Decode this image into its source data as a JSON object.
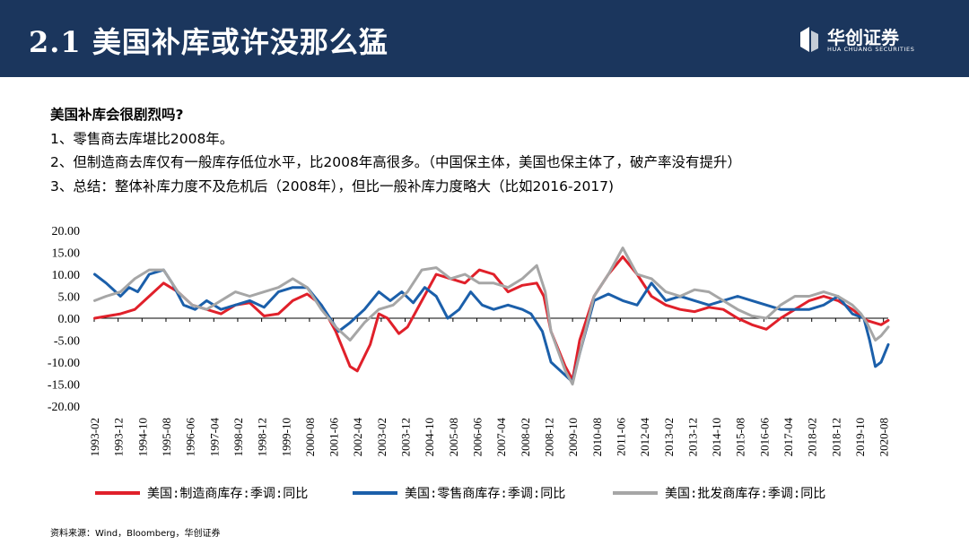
{
  "header": {
    "title": "2.1 美国补库或许没那么猛",
    "logo_name": "华创证券",
    "logo_sub": "HUA CHUANG SECURITIES",
    "logo_icon": "hc-logo-icon"
  },
  "bullets": {
    "question": "美国补库会很剧烈吗?",
    "items": [
      "1、零售商去库堪比2008年。",
      "2、但制造商去库仅有一般库存低位水平，比2008年高很多。（中国保主体，美国也保主体了，破产率没有提升）",
      "3、总结：整体补库力度不及危机后（2008年），但比一般补库力度略大（比如2016-2017)"
    ]
  },
  "chart_data": {
    "type": "line",
    "ylim": [
      -20,
      20
    ],
    "yticks": [
      "20.00",
      "15.00",
      "10.00",
      "5.00",
      "0.00",
      "-5.00",
      "-10.00",
      "-15.00",
      "-20.00"
    ],
    "xlim": [
      1993.083,
      2020.75
    ],
    "xticks": [
      "1993-02",
      "1993-12",
      "1994-10",
      "1995-08",
      "1996-06",
      "1997-04",
      "1998-02",
      "1998-12",
      "1999-10",
      "2000-08",
      "2001-06",
      "2002-04",
      "2003-02",
      "2003-12",
      "2004-10",
      "2005-08",
      "2006-06",
      "2007-04",
      "2008-02",
      "2008-12",
      "2009-10",
      "2010-08",
      "2011-06",
      "2012-04",
      "2013-02",
      "2013-12",
      "2014-10",
      "2015-08",
      "2016-06",
      "2017-04",
      "2018-02",
      "2018-12",
      "2019-10",
      "2020-08"
    ],
    "series": [
      {
        "name": "美国:制造商库存:季调:同比",
        "color": "#e0202a",
        "points": [
          [
            1993.1,
            0
          ],
          [
            1994.0,
            1
          ],
          [
            1994.5,
            2
          ],
          [
            1995.0,
            5
          ],
          [
            1995.5,
            8
          ],
          [
            1996.0,
            6
          ],
          [
            1996.5,
            3
          ],
          [
            1997.0,
            2
          ],
          [
            1997.5,
            1
          ],
          [
            1998.0,
            3
          ],
          [
            1998.5,
            3.5
          ],
          [
            1999.0,
            0.5
          ],
          [
            1999.5,
            1
          ],
          [
            2000.0,
            4
          ],
          [
            2000.5,
            5.5
          ],
          [
            2001.0,
            3
          ],
          [
            2001.5,
            -3
          ],
          [
            2002.0,
            -11
          ],
          [
            2002.25,
            -12
          ],
          [
            2002.7,
            -6
          ],
          [
            2003.0,
            1
          ],
          [
            2003.3,
            0
          ],
          [
            2003.7,
            -3.5
          ],
          [
            2004.0,
            -2
          ],
          [
            2004.5,
            4
          ],
          [
            2005.0,
            10
          ],
          [
            2005.5,
            9
          ],
          [
            2006.0,
            8
          ],
          [
            2006.5,
            11
          ],
          [
            2007.0,
            10
          ],
          [
            2007.5,
            6
          ],
          [
            2008.0,
            7.5
          ],
          [
            2008.5,
            8
          ],
          [
            2008.75,
            5
          ],
          [
            2009.0,
            -3
          ],
          [
            2009.5,
            -11
          ],
          [
            2009.75,
            -14
          ],
          [
            2010.0,
            -5
          ],
          [
            2010.5,
            5
          ],
          [
            2011.0,
            10
          ],
          [
            2011.5,
            14
          ],
          [
            2012.0,
            10
          ],
          [
            2012.5,
            5
          ],
          [
            2013.0,
            3
          ],
          [
            2013.5,
            2
          ],
          [
            2014.0,
            1.5
          ],
          [
            2014.5,
            2.5
          ],
          [
            2015.0,
            2
          ],
          [
            2015.5,
            0
          ],
          [
            2016.0,
            -1.5
          ],
          [
            2016.5,
            -2.5
          ],
          [
            2017.0,
            0
          ],
          [
            2017.5,
            2
          ],
          [
            2018.0,
            4
          ],
          [
            2018.5,
            5
          ],
          [
            2019.0,
            4
          ],
          [
            2019.5,
            2
          ],
          [
            2020.0,
            -0.5
          ],
          [
            2020.5,
            -1.5
          ],
          [
            2020.75,
            -0.5
          ]
        ]
      },
      {
        "name": "美国:零售商库存:季调:同比",
        "color": "#1b5faa",
        "points": [
          [
            1993.1,
            10
          ],
          [
            1993.5,
            8
          ],
          [
            1994.0,
            5
          ],
          [
            1994.3,
            7
          ],
          [
            1994.6,
            6
          ],
          [
            1995.0,
            10
          ],
          [
            1995.5,
            11
          ],
          [
            1995.8,
            8
          ],
          [
            1996.2,
            3
          ],
          [
            1996.6,
            2
          ],
          [
            1997.0,
            4
          ],
          [
            1997.5,
            2
          ],
          [
            1998.0,
            3
          ],
          [
            1998.5,
            4
          ],
          [
            1999.0,
            2.5
          ],
          [
            1999.5,
            6
          ],
          [
            2000.0,
            7
          ],
          [
            2000.5,
            7
          ],
          [
            2001.0,
            3
          ],
          [
            2001.4,
            -1
          ],
          [
            2001.6,
            -3
          ],
          [
            2002.0,
            -1
          ],
          [
            2002.5,
            2
          ],
          [
            2003.0,
            6
          ],
          [
            2003.4,
            4
          ],
          [
            2003.8,
            6
          ],
          [
            2004.2,
            3.5
          ],
          [
            2004.6,
            7
          ],
          [
            2005.0,
            5
          ],
          [
            2005.4,
            0
          ],
          [
            2005.8,
            2
          ],
          [
            2006.2,
            6
          ],
          [
            2006.6,
            3
          ],
          [
            2007.0,
            2
          ],
          [
            2007.5,
            3
          ],
          [
            2008.0,
            2
          ],
          [
            2008.3,
            1
          ],
          [
            2008.7,
            -3
          ],
          [
            2009.0,
            -10
          ],
          [
            2009.5,
            -13
          ],
          [
            2009.75,
            -14.5
          ],
          [
            2010.0,
            -8
          ],
          [
            2010.5,
            4
          ],
          [
            2011.0,
            5.5
          ],
          [
            2011.5,
            4
          ],
          [
            2012.0,
            3
          ],
          [
            2012.5,
            8
          ],
          [
            2013.0,
            4
          ],
          [
            2013.5,
            5
          ],
          [
            2014.0,
            4
          ],
          [
            2014.5,
            3
          ],
          [
            2015.0,
            4
          ],
          [
            2015.5,
            5
          ],
          [
            2016.0,
            4
          ],
          [
            2016.5,
            3
          ],
          [
            2017.0,
            2
          ],
          [
            2017.5,
            2
          ],
          [
            2018.0,
            2
          ],
          [
            2018.5,
            3
          ],
          [
            2019.0,
            5
          ],
          [
            2019.5,
            1
          ],
          [
            2019.9,
            0
          ],
          [
            2020.1,
            -5
          ],
          [
            2020.3,
            -11
          ],
          [
            2020.5,
            -10
          ],
          [
            2020.75,
            -6
          ]
        ]
      },
      {
        "name": "美国:批发商库存:季调:同比",
        "color": "#a6a6a6",
        "points": [
          [
            1993.1,
            4
          ],
          [
            1993.5,
            5
          ],
          [
            1994.0,
            6
          ],
          [
            1994.5,
            9
          ],
          [
            1995.0,
            11
          ],
          [
            1995.5,
            11
          ],
          [
            1996.0,
            6
          ],
          [
            1996.5,
            3
          ],
          [
            1997.0,
            2
          ],
          [
            1997.5,
            4
          ],
          [
            1998.0,
            6
          ],
          [
            1998.5,
            5
          ],
          [
            1999.0,
            6
          ],
          [
            1999.5,
            7
          ],
          [
            2000.0,
            9
          ],
          [
            2000.5,
            7
          ],
          [
            2001.0,
            2
          ],
          [
            2001.5,
            -2
          ],
          [
            2002.0,
            -5
          ],
          [
            2002.5,
            -1
          ],
          [
            2003.0,
            2
          ],
          [
            2003.5,
            3
          ],
          [
            2004.0,
            6
          ],
          [
            2004.5,
            11
          ],
          [
            2005.0,
            11.5
          ],
          [
            2005.5,
            9
          ],
          [
            2006.0,
            10
          ],
          [
            2006.5,
            8
          ],
          [
            2007.0,
            8
          ],
          [
            2007.5,
            7
          ],
          [
            2008.0,
            9
          ],
          [
            2008.5,
            12
          ],
          [
            2008.8,
            6
          ],
          [
            2009.0,
            -3
          ],
          [
            2009.5,
            -12
          ],
          [
            2009.75,
            -15
          ],
          [
            2010.0,
            -8
          ],
          [
            2010.5,
            5
          ],
          [
            2011.0,
            10
          ],
          [
            2011.5,
            16
          ],
          [
            2012.0,
            10
          ],
          [
            2012.5,
            9
          ],
          [
            2013.0,
            6
          ],
          [
            2013.5,
            5
          ],
          [
            2014.0,
            6.5
          ],
          [
            2014.5,
            6
          ],
          [
            2015.0,
            4
          ],
          [
            2015.5,
            2
          ],
          [
            2016.0,
            0.5
          ],
          [
            2016.5,
            0
          ],
          [
            2017.0,
            3
          ],
          [
            2017.5,
            5
          ],
          [
            2018.0,
            5
          ],
          [
            2018.5,
            6
          ],
          [
            2019.0,
            5
          ],
          [
            2019.5,
            3
          ],
          [
            2019.8,
            1
          ],
          [
            2020.0,
            -1
          ],
          [
            2020.3,
            -5
          ],
          [
            2020.5,
            -4
          ],
          [
            2020.75,
            -2
          ]
        ]
      }
    ]
  },
  "source": "资料来源：Wind，Bloomberg，华创证券"
}
